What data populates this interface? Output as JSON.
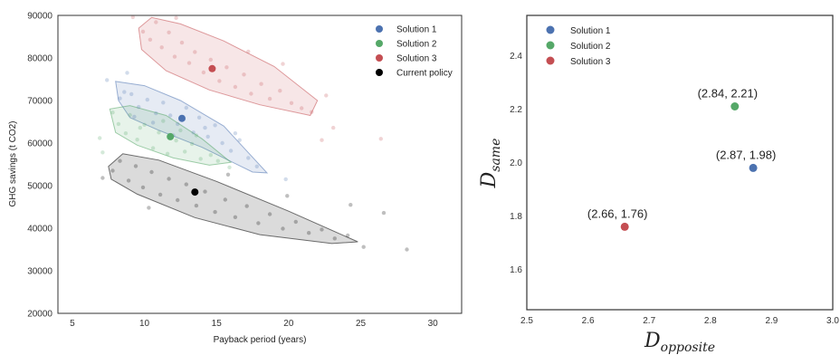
{
  "chart_data": [
    {
      "type": "scatter",
      "xlabel": "Payback period (years)",
      "ylabel": "GHG savings (t CO2)",
      "xlim": [
        4,
        32
      ],
      "ylim": [
        20000,
        90000
      ],
      "xticks": [
        5,
        10,
        15,
        20,
        25,
        30
      ],
      "yticks": [
        20000,
        30000,
        40000,
        50000,
        60000,
        70000,
        80000,
        90000
      ],
      "legend_position": "top-right",
      "grid": false,
      "series": [
        {
          "name": "Solution 1",
          "color": "#4c72b0",
          "point": [
            12.6,
            65800
          ],
          "hull": [
            [
              8.0,
              74500
            ],
            [
              10.0,
              73500
            ],
            [
              12.5,
              70000
            ],
            [
              15.5,
              64000
            ],
            [
              18.5,
              53000
            ],
            [
              17.5,
              53200
            ],
            [
              14.0,
              59000
            ],
            [
              11.0,
              63000
            ],
            [
              9.0,
              66000
            ],
            [
              8.2,
              70000
            ]
          ],
          "cloud": [
            [
              8.3,
              70500
            ],
            [
              8.6,
              72000
            ],
            [
              9.1,
              71500
            ],
            [
              9.6,
              68500
            ],
            [
              10.2,
              70200
            ],
            [
              10.8,
              67000
            ],
            [
              11.3,
              69500
            ],
            [
              11.8,
              66500
            ],
            [
              12.3,
              64500
            ],
            [
              12.9,
              68300
            ],
            [
              13.4,
              62500
            ],
            [
              13.8,
              66000
            ],
            [
              14.4,
              61500
            ],
            [
              14.9,
              64200
            ],
            [
              15.4,
              60000
            ],
            [
              16.0,
              58200
            ],
            [
              16.6,
              60700
            ],
            [
              17.2,
              56500
            ],
            [
              17.8,
              54500
            ],
            [
              9.3,
              66200
            ],
            [
              10.6,
              64800
            ],
            [
              12.0,
              61800
            ],
            [
              14.2,
              63600
            ],
            [
              16.3,
              62300
            ],
            [
              7.4,
              74800
            ],
            [
              8.8,
              76500
            ],
            [
              19.8,
              51500
            ]
          ]
        },
        {
          "name": "Solution 2",
          "color": "#55a868",
          "point": [
            11.8,
            61500
          ],
          "hull": [
            [
              7.6,
              68000
            ],
            [
              9.0,
              68800
            ],
            [
              11.5,
              66500
            ],
            [
              14.0,
              61000
            ],
            [
              16.0,
              55500
            ],
            [
              14.5,
              54800
            ],
            [
              12.0,
              56500
            ],
            [
              9.5,
              59500
            ],
            [
              8.0,
              62500
            ]
          ],
          "cloud": [
            [
              7.8,
              67200
            ],
            [
              8.2,
              64500
            ],
            [
              8.7,
              62300
            ],
            [
              9.0,
              66600
            ],
            [
              9.5,
              60800
            ],
            [
              10.0,
              64300
            ],
            [
              10.6,
              58800
            ],
            [
              11.0,
              62500
            ],
            [
              11.6,
              57500
            ],
            [
              12.2,
              60600
            ],
            [
              12.8,
              58000
            ],
            [
              13.3,
              59800
            ],
            [
              13.9,
              56300
            ],
            [
              14.6,
              57200
            ],
            [
              15.1,
              55800
            ],
            [
              9.7,
              63600
            ],
            [
              11.3,
              65200
            ],
            [
              12.5,
              63000
            ],
            [
              13.6,
              61800
            ],
            [
              6.9,
              61200
            ],
            [
              7.1,
              57800
            ],
            [
              15.9,
              54300
            ]
          ]
        },
        {
          "name": "Solution 3",
          "color": "#c44e52",
          "point": [
            14.7,
            77500
          ],
          "hull": [
            [
              9.6,
              87000
            ],
            [
              10.5,
              89500
            ],
            [
              12.5,
              88000
            ],
            [
              15.5,
              84000
            ],
            [
              19.0,
              78000
            ],
            [
              22.0,
              70000
            ],
            [
              21.5,
              66500
            ],
            [
              18.0,
              69000
            ],
            [
              14.5,
              72500
            ],
            [
              11.5,
              77000
            ],
            [
              9.8,
              82000
            ]
          ],
          "cloud": [
            [
              9.9,
              86200
            ],
            [
              10.4,
              84300
            ],
            [
              10.8,
              88400
            ],
            [
              11.2,
              82500
            ],
            [
              11.7,
              86000
            ],
            [
              12.1,
              80300
            ],
            [
              12.6,
              83600
            ],
            [
              13.1,
              78800
            ],
            [
              13.5,
              81400
            ],
            [
              14.1,
              76600
            ],
            [
              14.6,
              79600
            ],
            [
              15.2,
              74600
            ],
            [
              15.7,
              77800
            ],
            [
              16.3,
              73200
            ],
            [
              16.9,
              76100
            ],
            [
              17.4,
              71600
            ],
            [
              18.1,
              73900
            ],
            [
              18.7,
              70400
            ],
            [
              19.4,
              72300
            ],
            [
              20.2,
              69400
            ],
            [
              20.9,
              68200
            ],
            [
              21.6,
              67300
            ],
            [
              12.2,
              89400
            ],
            [
              17.2,
              81500
            ],
            [
              22.6,
              71200
            ],
            [
              23.1,
              63600
            ],
            [
              19.6,
              78600
            ],
            [
              9.2,
              89600
            ],
            [
              22.3,
              60700
            ],
            [
              26.4,
              61000
            ]
          ]
        },
        {
          "name": "Current policy",
          "color": "#000000",
          "point": [
            13.5,
            48500
          ],
          "hull": [
            [
              7.5,
              54500
            ],
            [
              8.5,
              57500
            ],
            [
              11.0,
              56000
            ],
            [
              15.0,
              51000
            ],
            [
              20.0,
              44000
            ],
            [
              24.8,
              36800
            ],
            [
              23.0,
              36400
            ],
            [
              18.0,
              38500
            ],
            [
              13.5,
              42500
            ],
            [
              9.5,
              48000
            ],
            [
              7.7,
              51500
            ]
          ],
          "cloud": [
            [
              7.8,
              53500
            ],
            [
              8.3,
              55800
            ],
            [
              8.9,
              51200
            ],
            [
              9.4,
              54600
            ],
            [
              9.9,
              49600
            ],
            [
              10.5,
              53200
            ],
            [
              11.1,
              47900
            ],
            [
              11.7,
              51600
            ],
            [
              12.3,
              46600
            ],
            [
              12.9,
              50300
            ],
            [
              13.6,
              45300
            ],
            [
              14.2,
              48600
            ],
            [
              14.9,
              43800
            ],
            [
              15.6,
              46700
            ],
            [
              16.3,
              42600
            ],
            [
              17.1,
              45200
            ],
            [
              17.9,
              41200
            ],
            [
              18.7,
              43300
            ],
            [
              19.6,
              39900
            ],
            [
              20.5,
              41500
            ],
            [
              21.4,
              38900
            ],
            [
              22.3,
              39700
            ],
            [
              23.2,
              37600
            ],
            [
              24.1,
              38300
            ],
            [
              25.2,
              35600
            ],
            [
              28.2,
              35000
            ],
            [
              24.3,
              45500
            ],
            [
              10.3,
              44800
            ],
            [
              7.1,
              51800
            ],
            [
              15.8,
              52600
            ],
            [
              19.9,
              47600
            ],
            [
              26.6,
              43600
            ]
          ]
        }
      ]
    },
    {
      "type": "scatter",
      "xlabel": "D_opposite",
      "ylabel": "D_same",
      "xlabel_parts": {
        "base": "D",
        "sub": "opposite"
      },
      "ylabel_parts": {
        "base": "D",
        "sub": "same"
      },
      "xlim": [
        2.5,
        3.0
      ],
      "ylim": [
        1.45,
        2.55
      ],
      "xticks": [
        "2.5",
        "2.6",
        "2.7",
        "2.8",
        "2.9",
        "3.0"
      ],
      "yticks": [
        "1.6",
        "1.8",
        "2.0",
        "2.2",
        "2.4"
      ],
      "legend_position": "top-left",
      "grid": false,
      "series": [
        {
          "name": "Solution 1",
          "color": "#4c72b0",
          "x": 2.87,
          "y": 1.98,
          "label": "(2.87, 1.98)"
        },
        {
          "name": "Solution 2",
          "color": "#55a868",
          "x": 2.84,
          "y": 2.21,
          "label": "(2.84, 2.21)"
        },
        {
          "name": "Solution 3",
          "color": "#c44e52",
          "x": 2.66,
          "y": 1.76,
          "label": "(2.66, 1.76)"
        }
      ]
    }
  ]
}
